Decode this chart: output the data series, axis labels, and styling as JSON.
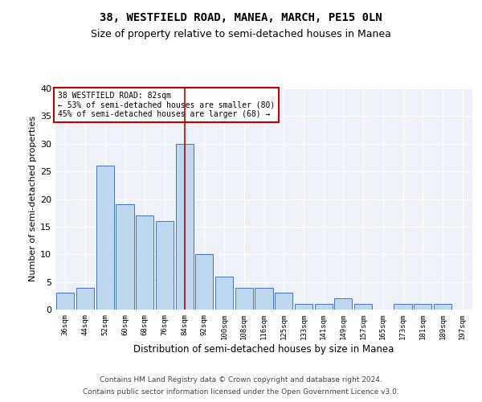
{
  "title1": "38, WESTFIELD ROAD, MANEA, MARCH, PE15 0LN",
  "title2": "Size of property relative to semi-detached houses in Manea",
  "xlabel": "Distribution of semi-detached houses by size in Manea",
  "ylabel": "Number of semi-detached properties",
  "categories": [
    "36sqm",
    "44sqm",
    "52sqm",
    "60sqm",
    "68sqm",
    "76sqm",
    "84sqm",
    "92sqm",
    "100sqm",
    "108sqm",
    "116sqm",
    "125sqm",
    "133sqm",
    "141sqm",
    "149sqm",
    "157sqm",
    "165sqm",
    "173sqm",
    "181sqm",
    "189sqm",
    "197sqm"
  ],
  "values": [
    3,
    4,
    26,
    19,
    17,
    16,
    30,
    10,
    6,
    4,
    4,
    3,
    1,
    1,
    2,
    1,
    0,
    1,
    1,
    1,
    0
  ],
  "bar_color": "#bdd7ee",
  "bar_edge_color": "#4472c4",
  "highlight_index": 6,
  "highlight_line_color": "#c00000",
  "ylim": [
    0,
    40
  ],
  "yticks": [
    0,
    5,
    10,
    15,
    20,
    25,
    30,
    35,
    40
  ],
  "annotation_title": "38 WESTFIELD ROAD: 82sqm",
  "annotation_line1": "← 53% of semi-detached houses are smaller (80)",
  "annotation_line2": "45% of semi-detached houses are larger (68) →",
  "annotation_box_color": "#ffffff",
  "annotation_box_edge_color": "#c00000",
  "footer1": "Contains HM Land Registry data © Crown copyright and database right 2024.",
  "footer2": "Contains public sector information licensed under the Open Government Licence v3.0.",
  "bg_color": "#eef2f8",
  "title1_fontsize": 10,
  "title2_fontsize": 9,
  "xlabel_fontsize": 8.5,
  "ylabel_fontsize": 8,
  "footer_fontsize": 6.5
}
